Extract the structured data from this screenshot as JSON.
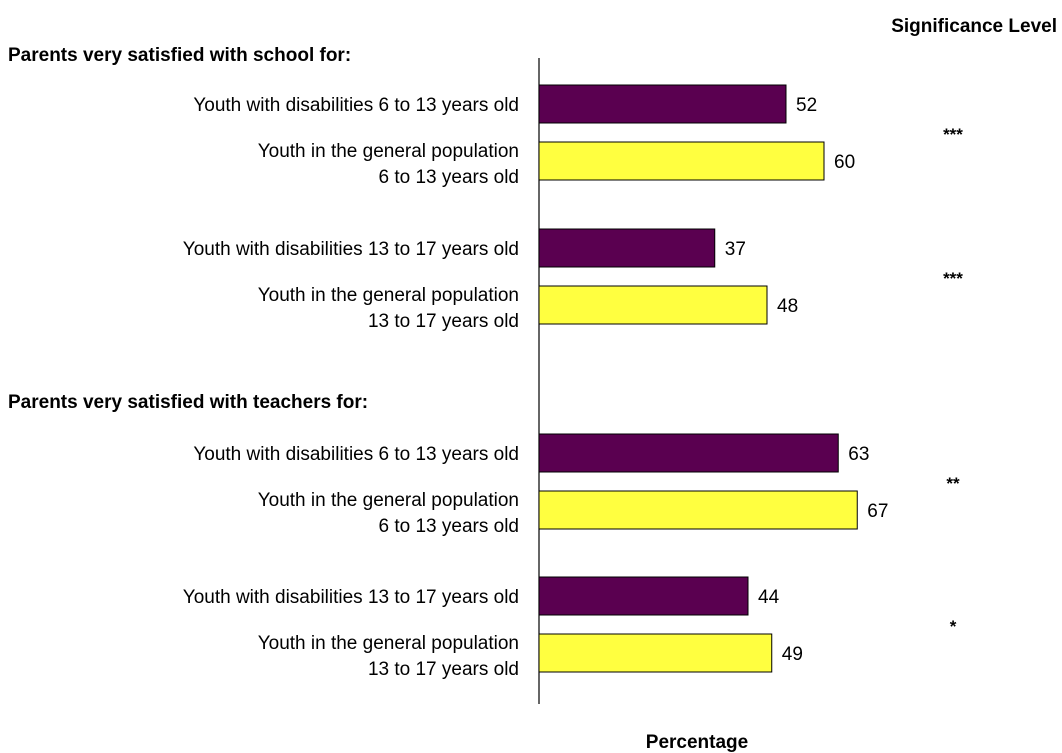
{
  "chart_data": {
    "type": "bar",
    "orientation": "horizontal",
    "significance_header": "Significance Level",
    "xlabel": "Percentage",
    "colors": {
      "disabilities": "#5a0050",
      "general": "#ffff40",
      "bar_stroke": "#000000"
    },
    "groups": [
      {
        "heading": "Parents very satisfied with school for:",
        "pairs": [
          {
            "significance": "***",
            "bars": [
              {
                "label": [
                  "Youth with disabilities 6 to 13 years old"
                ],
                "value": 52,
                "series": "disabilities"
              },
              {
                "label": [
                  "Youth in the general population",
                  "6 to 13 years old"
                ],
                "value": 60,
                "series": "general"
              }
            ]
          },
          {
            "significance": "***",
            "bars": [
              {
                "label": [
                  "Youth with disabilities 13 to 17 years old"
                ],
                "value": 37,
                "series": "disabilities"
              },
              {
                "label": [
                  "Youth in the general population",
                  "13 to 17 years old"
                ],
                "value": 48,
                "series": "general"
              }
            ]
          }
        ]
      },
      {
        "heading": "Parents very satisfied with teachers for:",
        "pairs": [
          {
            "significance": "**",
            "bars": [
              {
                "label": [
                  "Youth with disabilities 6 to 13 years old"
                ],
                "value": 63,
                "series": "disabilities"
              },
              {
                "label": [
                  "Youth in the general population",
                  "6 to 13 years old"
                ],
                "value": 67,
                "series": "general"
              }
            ]
          },
          {
            "significance": "*",
            "bars": [
              {
                "label": [
                  "Youth with disabilities 13 to 17 years old"
                ],
                "value": 44,
                "series": "disabilities"
              },
              {
                "label": [
                  "Youth in the general population",
                  "13 to 17 years old"
                ],
                "value": 49,
                "series": "general"
              }
            ]
          }
        ]
      }
    ]
  }
}
